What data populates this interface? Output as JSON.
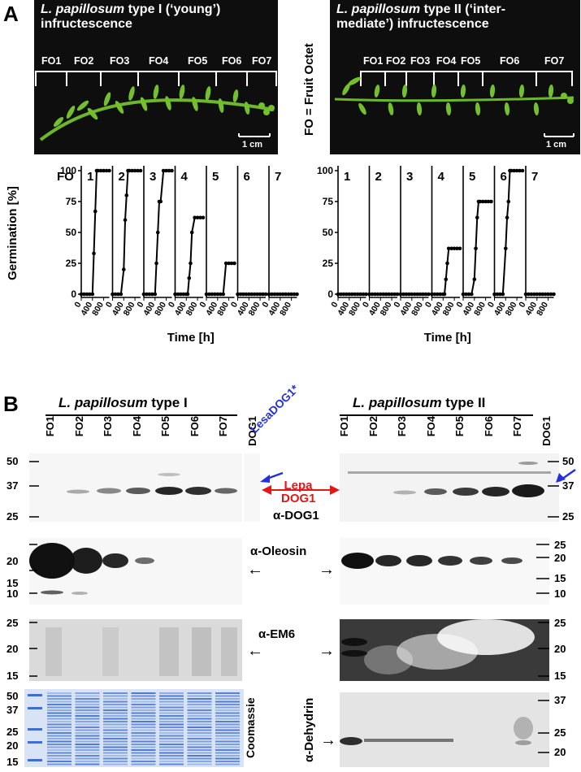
{
  "panelA": {
    "label": "A",
    "fo_definition": "FO = Fruit Octet",
    "type1": {
      "title_italic": "L. papillosum",
      "title_rest": " type I (‘young’)",
      "title_line2": "infructescence",
      "octets": [
        "FO1",
        "FO2",
        "FO3",
        "FO4",
        "FO5",
        "FO6",
        "FO7"
      ],
      "scalebar": "1 cm"
    },
    "type2": {
      "title_italic": "L. papillosum",
      "title_rest": " type II (‘inter-",
      "title_line2": "mediate’) infructescence",
      "octets": [
        "FO1",
        "FO2",
        "FO3",
        "FO4",
        "FO5",
        "FO6",
        "FO7"
      ],
      "scalebar": "1 cm"
    }
  },
  "chart_data": [
    {
      "type": "line",
      "name": "type I germination",
      "fo_label": "FO",
      "ylabel": "Germination [%]",
      "xlabel": "Time [h]",
      "yticks": [
        0,
        25,
        50,
        75,
        100
      ],
      "xticks": [
        0,
        400,
        800
      ],
      "panels": [
        {
          "label": "1",
          "x": [
            0,
            100,
            200,
            300,
            400,
            450,
            500,
            550,
            600,
            700,
            800,
            900,
            1000
          ],
          "y": [
            0,
            0,
            0,
            0,
            0,
            33,
            67,
            100,
            100,
            100,
            100,
            100,
            100
          ]
        },
        {
          "label": "2",
          "x": [
            0,
            100,
            200,
            300,
            400,
            450,
            500,
            550,
            600,
            700,
            800,
            900,
            1000
          ],
          "y": [
            0,
            0,
            0,
            0,
            20,
            60,
            80,
            100,
            100,
            100,
            100,
            100,
            100
          ]
        },
        {
          "label": "3",
          "x": [
            0,
            100,
            200,
            300,
            400,
            450,
            500,
            550,
            600,
            700,
            800,
            900,
            1000
          ],
          "y": [
            0,
            0,
            0,
            0,
            0,
            25,
            50,
            75,
            75,
            100,
            100,
            100,
            100
          ]
        },
        {
          "label": "4",
          "x": [
            0,
            100,
            200,
            300,
            400,
            450,
            500,
            550,
            600,
            700,
            800,
            900,
            1000
          ],
          "y": [
            0,
            0,
            0,
            0,
            0,
            0,
            13,
            25,
            50,
            62,
            62,
            62,
            62
          ]
        },
        {
          "label": "5",
          "x": [
            0,
            100,
            200,
            300,
            400,
            500,
            600,
            700,
            800,
            900,
            1000
          ],
          "y": [
            0,
            0,
            0,
            0,
            0,
            0,
            0,
            25,
            25,
            25,
            25
          ]
        },
        {
          "label": "6",
          "x": [
            0,
            100,
            200,
            300,
            400,
            500,
            600,
            700,
            800,
            900,
            1000
          ],
          "y": [
            0,
            0,
            0,
            0,
            0,
            0,
            0,
            0,
            0,
            0,
            0
          ]
        },
        {
          "label": "7",
          "x": [
            0,
            100,
            200,
            300,
            400,
            500,
            600,
            700,
            800,
            900,
            1000
          ],
          "y": [
            0,
            0,
            0,
            0,
            0,
            0,
            0,
            0,
            0,
            0,
            0
          ]
        }
      ]
    },
    {
      "type": "line",
      "name": "type II germination",
      "xlabel": "Time [h]",
      "yticks": [
        0,
        25,
        50,
        75,
        100
      ],
      "xticks": [
        0,
        400,
        800
      ],
      "panels": [
        {
          "label": "1",
          "x": [
            0,
            100,
            200,
            300,
            400,
            500,
            600,
            700,
            800,
            900,
            1000
          ],
          "y": [
            0,
            0,
            0,
            0,
            0,
            0,
            0,
            0,
            0,
            0,
            0
          ]
        },
        {
          "label": "2",
          "x": [
            0,
            100,
            200,
            300,
            400,
            500,
            600,
            700,
            800,
            900,
            1000
          ],
          "y": [
            0,
            0,
            0,
            0,
            0,
            0,
            0,
            0,
            0,
            0,
            0
          ]
        },
        {
          "label": "3",
          "x": [
            0,
            100,
            200,
            300,
            400,
            500,
            600,
            700,
            800,
            900,
            1000
          ],
          "y": [
            0,
            0,
            0,
            0,
            0,
            0,
            0,
            0,
            0,
            0,
            0
          ]
        },
        {
          "label": "4",
          "x": [
            0,
            100,
            200,
            300,
            400,
            450,
            500,
            550,
            600,
            700,
            800,
            900,
            1000
          ],
          "y": [
            0,
            0,
            0,
            0,
            0,
            0,
            12,
            25,
            37,
            37,
            37,
            37,
            37
          ]
        },
        {
          "label": "5",
          "x": [
            0,
            100,
            200,
            300,
            400,
            450,
            500,
            550,
            600,
            700,
            800,
            900,
            1000
          ],
          "y": [
            0,
            0,
            0,
            0,
            12,
            37,
            62,
            75,
            75,
            75,
            75,
            75,
            75
          ]
        },
        {
          "label": "6",
          "x": [
            0,
            100,
            200,
            300,
            400,
            450,
            500,
            550,
            600,
            700,
            800,
            900,
            1000
          ],
          "y": [
            0,
            0,
            0,
            0,
            37,
            62,
            75,
            100,
            100,
            100,
            100,
            100,
            100
          ]
        },
        {
          "label": "7",
          "x": [
            0,
            100,
            200,
            300,
            400,
            500,
            600,
            700,
            800,
            900,
            1000
          ],
          "y": [
            0,
            0,
            0,
            0,
            0,
            0,
            0,
            0,
            0,
            0,
            0
          ]
        }
      ]
    }
  ],
  "panelB": {
    "label": "B",
    "left_title_italic": "L. papillosum",
    "left_title_rest": " type I",
    "right_title_italic": "L. papillosum",
    "right_title_rest": " type II",
    "lanes": [
      "FO1",
      "FO2",
      "FO3",
      "FO4",
      "FO5",
      "FO6",
      "FO7",
      "DOG1"
    ],
    "lesa": "LesaDOG1*",
    "lepa_line1": "Lepa",
    "lepa_line2": "DOG1",
    "anti_dog1": "α-DOG1",
    "anti_oleosin": "α-Oleosin",
    "anti_em6": "α-EM6",
    "coomassie": "Coomassie",
    "anti_dehydrin": "α-Dehydrin",
    "mw_dog1": [
      "50",
      "37",
      "25"
    ],
    "mw_oleosin_left": [
      "20",
      "15",
      "10"
    ],
    "mw_oleosin_right": [
      "25",
      "20",
      "15",
      "10"
    ],
    "mw_em6": [
      "25",
      "20",
      "15"
    ],
    "mw_coomassie": [
      "50",
      "37",
      "25",
      "20",
      "15"
    ],
    "mw_dehydrin": [
      "37",
      "25",
      "20"
    ],
    "colors": {
      "lesa_arrow": "#2430e0",
      "lepa_arrow": "#e01818",
      "plant_green": "#6cb82a",
      "coomassie_blue": "#3f6fd0"
    }
  }
}
